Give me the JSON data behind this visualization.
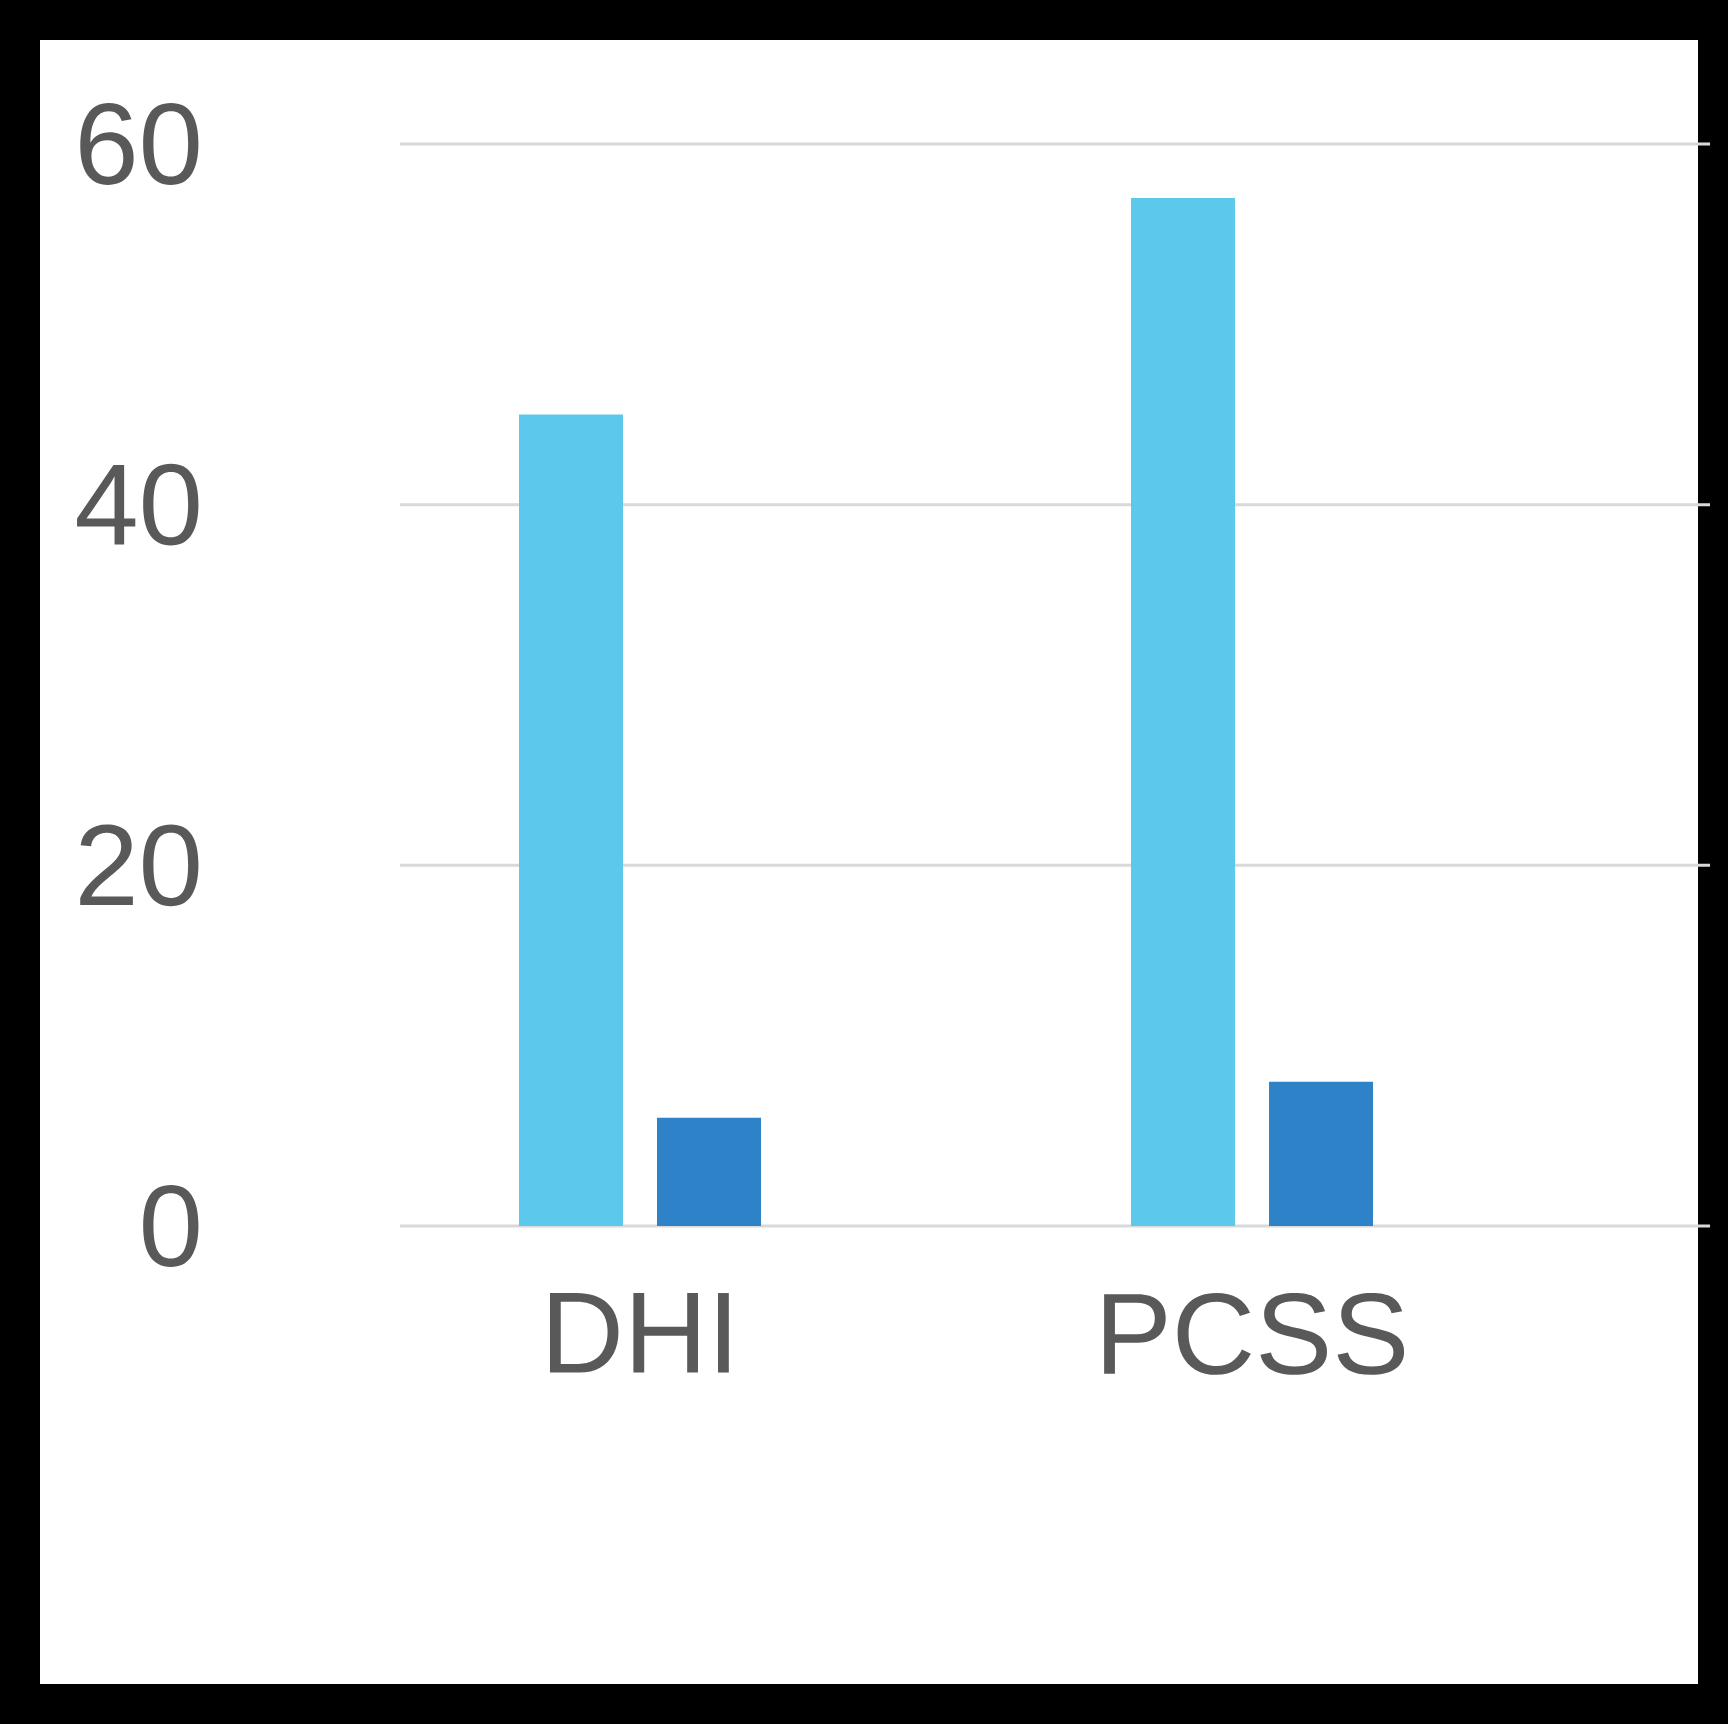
{
  "chart_data": {
    "type": "bar",
    "categories": [
      "DHI",
      "PCSS"
    ],
    "series": [
      {
        "color": "#5bc8ec",
        "values": [
          45,
          57
        ]
      },
      {
        "color": "#2e82c8",
        "values": [
          6,
          8
        ]
      }
    ],
    "ylim": [
      0,
      60
    ],
    "yticks": [
      0,
      20,
      40,
      60
    ],
    "grid": "y"
  }
}
